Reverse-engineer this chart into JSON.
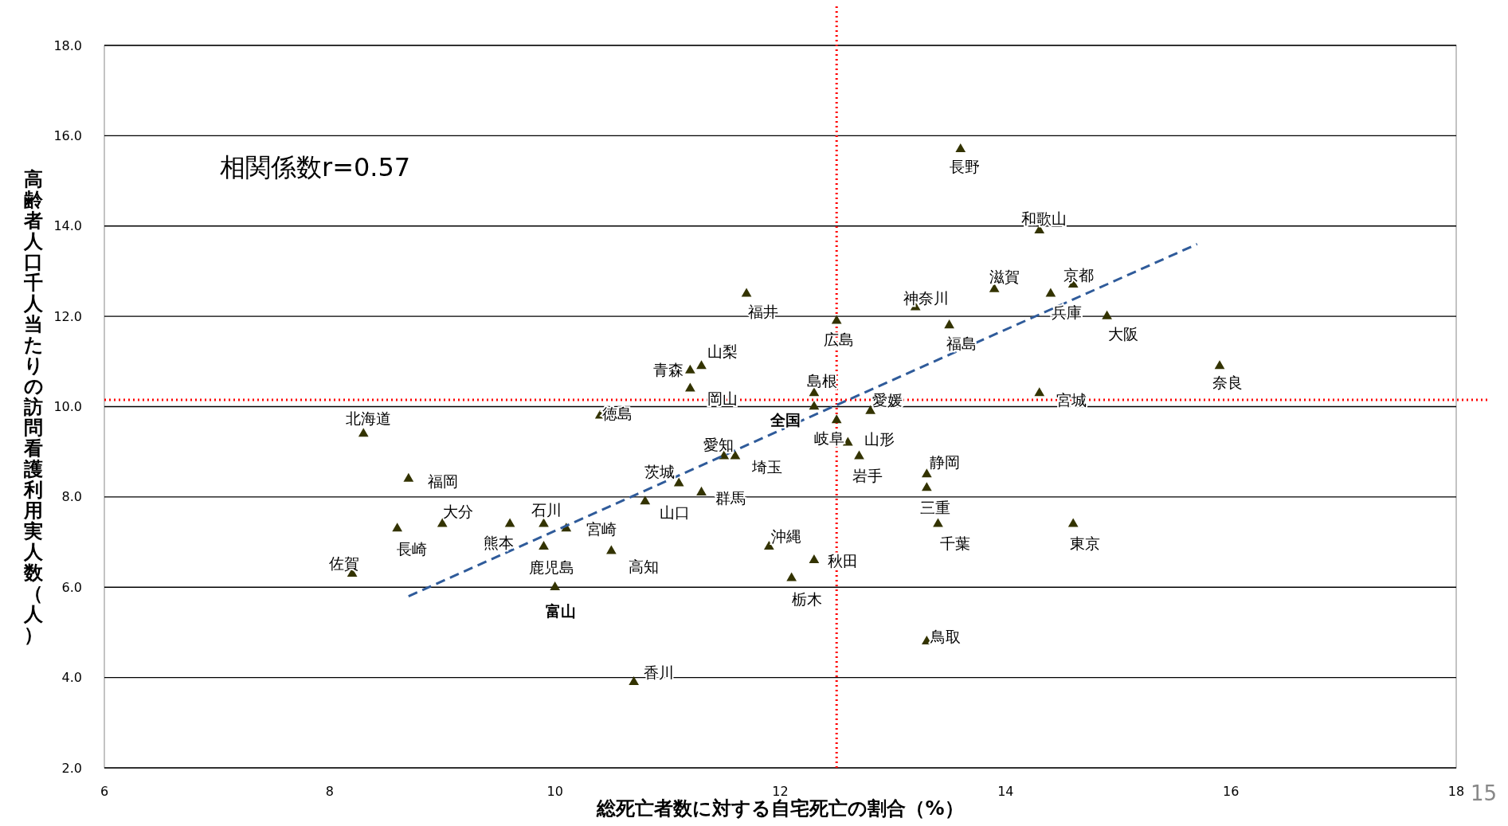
{
  "chart_data": {
    "type": "scatter",
    "xlabel": "総死亡者数に対する自宅死亡の割合（%）",
    "ylabel": "高齢者人口千人当たりの訪問看護利用実人数（人）",
    "xlim": [
      6,
      18
    ],
    "xticks": [
      6,
      8,
      10,
      12,
      14,
      16,
      18
    ],
    "ylim": [
      2,
      18
    ],
    "yticks": [
      {
        "value": 2,
        "label": "2.0"
      },
      {
        "value": 4,
        "label": "4.0"
      },
      {
        "value": 6,
        "label": "6.0"
      },
      {
        "value": 8,
        "label": "8.0"
      },
      {
        "value": 10,
        "label": "10.0"
      },
      {
        "value": 12,
        "label": "12.0"
      },
      {
        "value": 14,
        "label": "14.0"
      },
      {
        "value": 16,
        "label": "16.0"
      },
      {
        "value": 18,
        "label": "18.0"
      }
    ],
    "grid": "y",
    "series": [
      {
        "marker": "triangle",
        "color": "#333300",
        "x": [
          13.6,
          14.3,
          13.9,
          14.6,
          14.4,
          14.9,
          13.2,
          11.7,
          12.5,
          13.5,
          11.3,
          11.2,
          11.2,
          12.3,
          12.3,
          15.9,
          14.3,
          12.8,
          10.4,
          8.3,
          12.5,
          12.6,
          12.7,
          11.5,
          11.6,
          13.3,
          13.3,
          8.7,
          11.1,
          11.3,
          10.8,
          9.0,
          9.6,
          9.9,
          10.1,
          8.6,
          13.4,
          14.6,
          9.9,
          11.9,
          10.5,
          12.3,
          8.2,
          12.1,
          10.0,
          13.3,
          10.7
        ],
        "values": [
          15.7,
          13.9,
          12.6,
          12.7,
          12.5,
          12.0,
          12.2,
          12.5,
          11.9,
          11.8,
          10.9,
          10.8,
          10.4,
          10.3,
          10.0,
          10.9,
          10.3,
          9.9,
          9.8,
          9.4,
          9.7,
          9.2,
          8.9,
          8.9,
          8.9,
          8.5,
          8.2,
          8.4,
          8.3,
          8.1,
          7.9,
          7.4,
          7.4,
          7.4,
          7.3,
          7.3,
          7.4,
          7.4,
          6.9,
          6.9,
          6.8,
          6.6,
          6.3,
          6.2,
          6.0,
          4.8,
          3.9
        ],
        "value_labels": [
          "長野",
          "和歌山",
          "滋賀",
          "京都",
          "兵庫",
          "大阪",
          "神奈川",
          "福井",
          "広島",
          "福島",
          "山梨",
          "青森",
          "岡山",
          "島根",
          "全国",
          "奈良",
          "宮城",
          "愛媛",
          "徳島",
          "北海道",
          "岐阜",
          "山形",
          "岩手",
          "愛知",
          "埼玉",
          "静岡",
          "三重",
          "福岡",
          "茨城",
          "群馬",
          "山口",
          "大分",
          "熊本",
          "石川",
          "宮崎",
          "長崎",
          "千葉",
          "東京",
          "鹿児島",
          "沖縄",
          "高知",
          "秋田",
          "佐賀",
          "栃木",
          "富山",
          "鳥取",
          "香川"
        ]
      },
      {
        "type": "line",
        "color": "#2f5b9a",
        "line_style": "dashed",
        "x": [
          8.7,
          15.7
        ],
        "values": [
          5.8,
          13.6
        ]
      }
    ],
    "ref_lines": [
      {
        "axis": "x",
        "value": 12.5,
        "color": "#ff0000",
        "line_style": "dotted"
      },
      {
        "axis": "y",
        "value": 10.15,
        "color": "#ff0000",
        "line_style": "dotted"
      }
    ],
    "annotations": [
      "相関係数r=0.57",
      "15"
    ]
  }
}
